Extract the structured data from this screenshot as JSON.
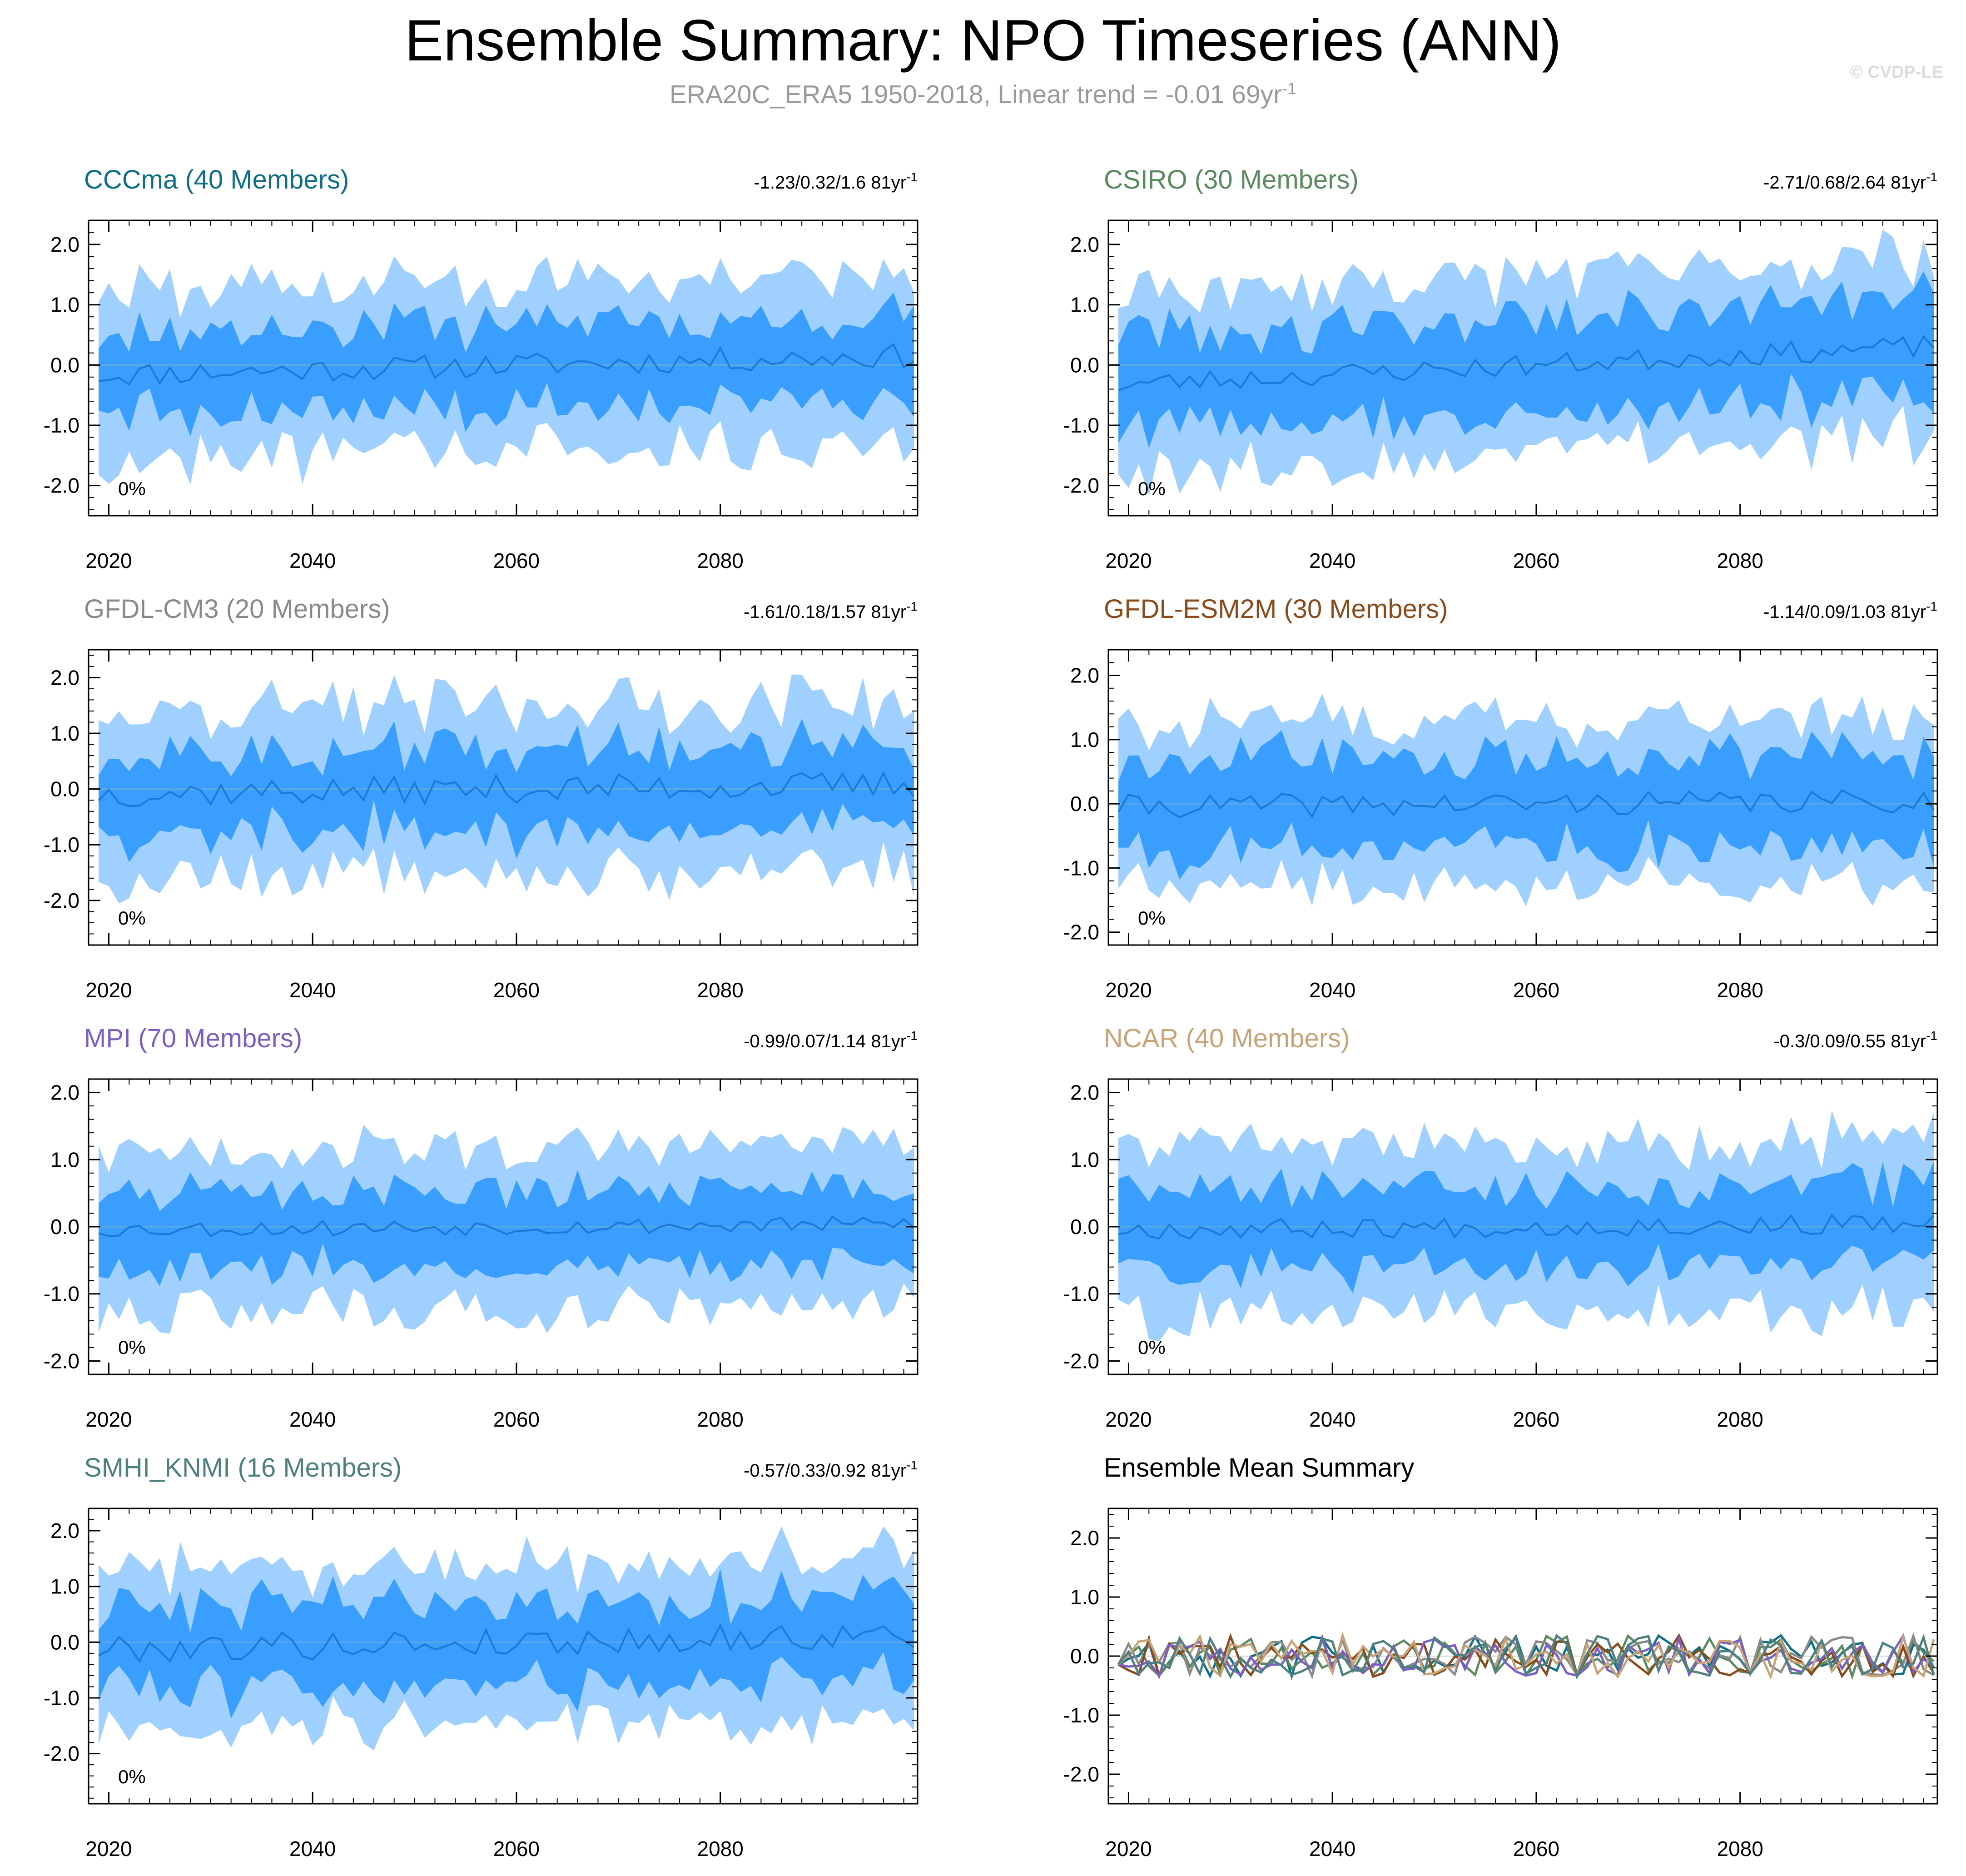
{
  "header": {
    "title": "Ensemble Summary: NPO Timeseries (ANN)",
    "subtitle_main": "ERA20C_ERA5 1950-2018, Linear trend = -0.01 69yr",
    "subtitle_sup": "-1",
    "watermark": "© CVDP-LE"
  },
  "colors": {
    "band_outer": "#9fd0ff",
    "band_inner": "#3a9eff",
    "mean_line": "#1a7ad6",
    "zero_line": "#5aa9e6"
  },
  "chart_data": [
    {
      "type": "area",
      "id": "cccma",
      "title": "CCCma (40 Members)",
      "title_color": "#0f6f8a",
      "trend_text": "-1.23/0.32/1.6 81yr",
      "trend_sup": "-1",
      "pct_label": "0%",
      "years": [
        2019,
        2099
      ],
      "ylim": [
        -2.5,
        2.4
      ],
      "yticks": [
        "2.0",
        "1.0",
        "0.0",
        "-1.0",
        "-2.0"
      ],
      "xticks": [
        "2020",
        "2040",
        "2060",
        "2080"
      ],
      "outer_amp": 1.4,
      "inner_amp": 0.7,
      "mean_amp": 0.2,
      "seed": 11,
      "trend": 0.004
    },
    {
      "type": "area",
      "id": "csiro",
      "title": "CSIRO (30 Members)",
      "title_color": "#5a8a5f",
      "trend_text": "-2.71/0.68/2.64 81yr",
      "trend_sup": "-1",
      "pct_label": "0%",
      "years": [
        2019,
        2099
      ],
      "ylim": [
        -2.5,
        2.4
      ],
      "yticks": [
        "2.0",
        "1.0",
        "0.0",
        "-1.0",
        "-2.0"
      ],
      "xticks": [
        "2020",
        "2040",
        "2060",
        "2080"
      ],
      "outer_amp": 1.5,
      "inner_amp": 0.85,
      "mean_amp": 0.18,
      "seed": 23,
      "trend": 0.008
    },
    {
      "type": "area",
      "id": "gfdl-cm3",
      "title": "GFDL-CM3 (20 Members)",
      "title_color": "#8a8a8a",
      "trend_text": "-1.61/0.18/1.57 81yr",
      "trend_sup": "-1",
      "pct_label": "0%",
      "years": [
        2019,
        2099
      ],
      "ylim": [
        -2.8,
        2.5
      ],
      "yticks": [
        "2.0",
        "1.0",
        "0.0",
        "-1.0",
        "-2.0"
      ],
      "xticks": [
        "2020",
        "2040",
        "2060",
        "2080"
      ],
      "outer_amp": 1.5,
      "inner_amp": 0.75,
      "mean_amp": 0.25,
      "seed": 37,
      "trend": 0.002
    },
    {
      "type": "area",
      "id": "gfdl-esm2m",
      "title": "GFDL-ESM2M (30 Members)",
      "title_color": "#8a4a1a",
      "trend_text": "-1.14/0.09/1.03 81yr",
      "trend_sup": "-1",
      "pct_label": "0%",
      "years": [
        2019,
        2099
      ],
      "ylim": [
        -2.2,
        2.4
      ],
      "yticks": [
        "2.0",
        "1.0",
        "0.0",
        "-1.0",
        "-2.0"
      ],
      "xticks": [
        "2020",
        "2040",
        "2060",
        "2080"
      ],
      "outer_amp": 1.3,
      "inner_amp": 0.75,
      "mean_amp": 0.18,
      "seed": 41,
      "trend": 0.001
    },
    {
      "type": "area",
      "id": "mpi",
      "title": "MPI (70 Members)",
      "title_color": "#7b5fc4",
      "trend_text": "-0.99/0.07/1.14 81yr",
      "trend_sup": "-1",
      "pct_label": "0%",
      "years": [
        2019,
        2099
      ],
      "ylim": [
        -2.2,
        2.2
      ],
      "yticks": [
        "2.0",
        "1.0",
        "0.0",
        "-1.0",
        "-2.0"
      ],
      "xticks": [
        "2020",
        "2040",
        "2060",
        "2080"
      ],
      "outer_amp": 1.2,
      "inner_amp": 0.6,
      "mean_amp": 0.12,
      "seed": 53,
      "trend": 0.001
    },
    {
      "type": "area",
      "id": "ncar",
      "title": "NCAR (40 Members)",
      "title_color": "#c8a377",
      "trend_text": "-0.3/0.09/0.55 81yr",
      "trend_sup": "-1",
      "pct_label": "0%",
      "years": [
        2019,
        2099
      ],
      "ylim": [
        -2.2,
        2.2
      ],
      "yticks": [
        "2.0",
        "1.0",
        "0.0",
        "-1.0",
        "-2.0"
      ],
      "xticks": [
        "2020",
        "2040",
        "2060",
        "2080"
      ],
      "outer_amp": 1.25,
      "inner_amp": 0.65,
      "mean_amp": 0.15,
      "seed": 67,
      "trend": 0.001
    },
    {
      "type": "area",
      "id": "smhi-knmi",
      "title": "SMHI_KNMI (16 Members)",
      "title_color": "#4f8080",
      "trend_text": "-0.57/0.33/0.92 81yr",
      "trend_sup": "-1",
      "pct_label": "0%",
      "years": [
        2019,
        2099
      ],
      "ylim": [
        -2.9,
        2.4
      ],
      "yticks": [
        "2.0",
        "1.0",
        "0.0",
        "-1.0",
        "-2.0"
      ],
      "xticks": [
        "2020",
        "2040",
        "2060",
        "2080"
      ],
      "outer_amp": 1.45,
      "inner_amp": 0.8,
      "mean_amp": 0.25,
      "seed": 79,
      "trend": 0.003
    },
    {
      "type": "line",
      "id": "ensemble-mean",
      "title": "Ensemble Mean Summary",
      "title_color": "#000000",
      "years": [
        2019,
        2099
      ],
      "ylim": [
        -2.5,
        2.5
      ],
      "yticks": [
        "2.0",
        "1.0",
        "0.0",
        "-1.0",
        "-2.0"
      ],
      "xticks": [
        "2020",
        "2040",
        "2060",
        "2080"
      ],
      "series": [
        {
          "name": "CCCma",
          "color": "#0f6f8a",
          "seed": 11
        },
        {
          "name": "CSIRO",
          "color": "#5a8a5f",
          "seed": 23
        },
        {
          "name": "GFDL-CM3",
          "color": "#8a8a8a",
          "seed": 37
        },
        {
          "name": "GFDL-ESM2M",
          "color": "#8a4a1a",
          "seed": 41
        },
        {
          "name": "MPI",
          "color": "#7b5fc4",
          "seed": 53
        },
        {
          "name": "NCAR",
          "color": "#c8a377",
          "seed": 67
        },
        {
          "name": "SMHI_KNMI",
          "color": "#4f8080",
          "seed": 79
        }
      ]
    }
  ]
}
